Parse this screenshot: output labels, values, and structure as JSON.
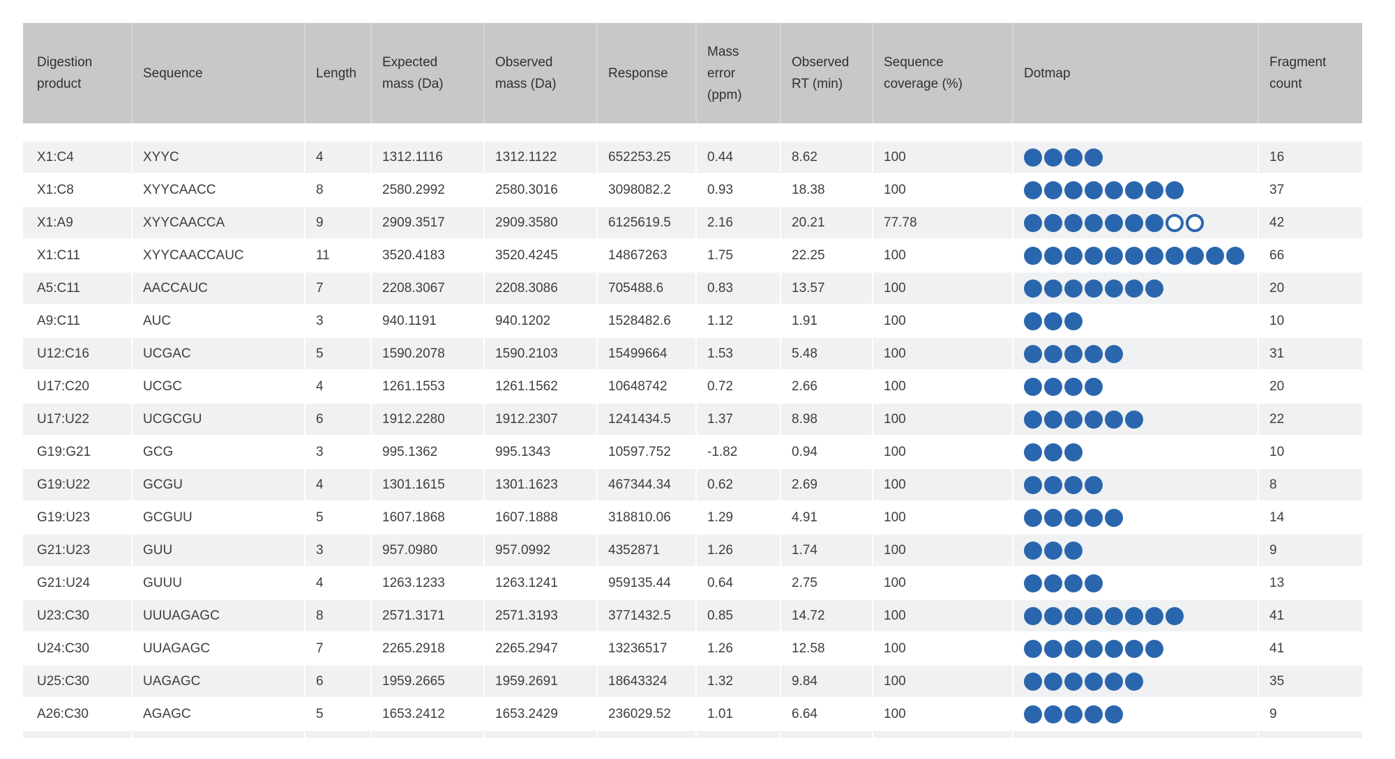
{
  "colors": {
    "header_bg": "#c8c8c8",
    "row_alt_bg": "#f0f1f2",
    "dot_filled": "#2a66ad",
    "dot_open_ring": "#2a66ad",
    "body_text": "#3e3e3e",
    "header_text": "#303030"
  },
  "table": {
    "columns": [
      {
        "key": "product",
        "label": "Digestion\nproduct"
      },
      {
        "key": "sequence",
        "label": "Sequence"
      },
      {
        "key": "length",
        "label": "Length"
      },
      {
        "key": "expected_mass",
        "label": "Expected\nmass (Da)"
      },
      {
        "key": "observed_mass",
        "label": "Observed\nmass (Da)"
      },
      {
        "key": "response",
        "label": "Response"
      },
      {
        "key": "mass_error",
        "label": "Mass\nerror\n(ppm)"
      },
      {
        "key": "observed_rt",
        "label": "Observed\nRT (min)"
      },
      {
        "key": "coverage",
        "label": "Sequence\ncoverage (%)"
      },
      {
        "key": "dotmap",
        "label": "Dotmap"
      },
      {
        "key": "fragments",
        "label": "Fragment\ncount"
      }
    ],
    "rows": [
      {
        "product": "X1:C4",
        "sequence": "XYYC",
        "length": "4",
        "expected_mass": "1312.1116",
        "observed_mass": "1312.1122",
        "response": "652253.25",
        "mass_error": "0.44",
        "observed_rt": "8.62",
        "coverage": "100",
        "dots_filled": 4,
        "dots_open": 0,
        "fragments": "16"
      },
      {
        "product": "X1:C8",
        "sequence": "XYYCAACC",
        "length": "8",
        "expected_mass": "2580.2992",
        "observed_mass": "2580.3016",
        "response": "3098082.2",
        "mass_error": "0.93",
        "observed_rt": "18.38",
        "coverage": "100",
        "dots_filled": 8,
        "dots_open": 0,
        "fragments": "37"
      },
      {
        "product": "X1:A9",
        "sequence": "XYYCAACCA",
        "length": "9",
        "expected_mass": "2909.3517",
        "observed_mass": "2909.3580",
        "response": "6125619.5",
        "mass_error": "2.16",
        "observed_rt": "20.21",
        "coverage": "77.78",
        "dots_filled": 7,
        "dots_open": 2,
        "fragments": "42"
      },
      {
        "product": "X1:C11",
        "sequence": "XYYCAACCAUC",
        "length": "11",
        "expected_mass": "3520.4183",
        "observed_mass": "3520.4245",
        "response": "14867263",
        "mass_error": "1.75",
        "observed_rt": "22.25",
        "coverage": "100",
        "dots_filled": 11,
        "dots_open": 0,
        "fragments": "66"
      },
      {
        "product": "A5:C11",
        "sequence": "AACCAUC",
        "length": "7",
        "expected_mass": "2208.3067",
        "observed_mass": "2208.3086",
        "response": "705488.6",
        "mass_error": "0.83",
        "observed_rt": "13.57",
        "coverage": "100",
        "dots_filled": 7,
        "dots_open": 0,
        "fragments": "20"
      },
      {
        "product": "A9:C11",
        "sequence": "AUC",
        "length": "3",
        "expected_mass": "940.1191",
        "observed_mass": "940.1202",
        "response": "1528482.6",
        "mass_error": "1.12",
        "observed_rt": "1.91",
        "coverage": "100",
        "dots_filled": 3,
        "dots_open": 0,
        "fragments": "10"
      },
      {
        "product": "U12:C16",
        "sequence": "UCGAC",
        "length": "5",
        "expected_mass": "1590.2078",
        "observed_mass": "1590.2103",
        "response": "15499664",
        "mass_error": "1.53",
        "observed_rt": "5.48",
        "coverage": "100",
        "dots_filled": 5,
        "dots_open": 0,
        "fragments": "31"
      },
      {
        "product": "U17:C20",
        "sequence": "UCGC",
        "length": "4",
        "expected_mass": "1261.1553",
        "observed_mass": "1261.1562",
        "response": "10648742",
        "mass_error": "0.72",
        "observed_rt": "2.66",
        "coverage": "100",
        "dots_filled": 4,
        "dots_open": 0,
        "fragments": "20"
      },
      {
        "product": "U17:U22",
        "sequence": "UCGCGU",
        "length": "6",
        "expected_mass": "1912.2280",
        "observed_mass": "1912.2307",
        "response": "1241434.5",
        "mass_error": "1.37",
        "observed_rt": "8.98",
        "coverage": "100",
        "dots_filled": 6,
        "dots_open": 0,
        "fragments": "22"
      },
      {
        "product": "G19:G21",
        "sequence": "GCG",
        "length": "3",
        "expected_mass": "995.1362",
        "observed_mass": "995.1343",
        "response": "10597.752",
        "mass_error": "-1.82",
        "observed_rt": "0.94",
        "coverage": "100",
        "dots_filled": 3,
        "dots_open": 0,
        "fragments": "10"
      },
      {
        "product": "G19:U22",
        "sequence": "GCGU",
        "length": "4",
        "expected_mass": "1301.1615",
        "observed_mass": "1301.1623",
        "response": "467344.34",
        "mass_error": "0.62",
        "observed_rt": "2.69",
        "coverage": "100",
        "dots_filled": 4,
        "dots_open": 0,
        "fragments": "8"
      },
      {
        "product": "G19:U23",
        "sequence": "GCGUU",
        "length": "5",
        "expected_mass": "1607.1868",
        "observed_mass": "1607.1888",
        "response": "318810.06",
        "mass_error": "1.29",
        "observed_rt": "4.91",
        "coverage": "100",
        "dots_filled": 5,
        "dots_open": 0,
        "fragments": "14"
      },
      {
        "product": "G21:U23",
        "sequence": "GUU",
        "length": "3",
        "expected_mass": "957.0980",
        "observed_mass": "957.0992",
        "response": "4352871",
        "mass_error": "1.26",
        "observed_rt": "1.74",
        "coverage": "100",
        "dots_filled": 3,
        "dots_open": 0,
        "fragments": "9"
      },
      {
        "product": "G21:U24",
        "sequence": "GUUU",
        "length": "4",
        "expected_mass": "1263.1233",
        "observed_mass": "1263.1241",
        "response": "959135.44",
        "mass_error": "0.64",
        "observed_rt": "2.75",
        "coverage": "100",
        "dots_filled": 4,
        "dots_open": 0,
        "fragments": "13"
      },
      {
        "product": "U23:C30",
        "sequence": "UUUAGAGC",
        "length": "8",
        "expected_mass": "2571.3171",
        "observed_mass": "2571.3193",
        "response": "3771432.5",
        "mass_error": "0.85",
        "observed_rt": "14.72",
        "coverage": "100",
        "dots_filled": 8,
        "dots_open": 0,
        "fragments": "41"
      },
      {
        "product": "U24:C30",
        "sequence": "UUAGAGC",
        "length": "7",
        "expected_mass": "2265.2918",
        "observed_mass": "2265.2947",
        "response": "13236517",
        "mass_error": "1.26",
        "observed_rt": "12.58",
        "coverage": "100",
        "dots_filled": 7,
        "dots_open": 0,
        "fragments": "41"
      },
      {
        "product": "U25:C30",
        "sequence": "UAGAGC",
        "length": "6",
        "expected_mass": "1959.2665",
        "observed_mass": "1959.2691",
        "response": "18643324",
        "mass_error": "1.32",
        "observed_rt": "9.84",
        "coverage": "100",
        "dots_filled": 6,
        "dots_open": 0,
        "fragments": "35"
      },
      {
        "product": "A26:C30",
        "sequence": "AGAGC",
        "length": "5",
        "expected_mass": "1653.2412",
        "observed_mass": "1653.2429",
        "response": "236029.52",
        "mass_error": "1.01",
        "observed_rt": "6.64",
        "coverage": "100",
        "dots_filled": 5,
        "dots_open": 0,
        "fragments": "9"
      }
    ]
  }
}
